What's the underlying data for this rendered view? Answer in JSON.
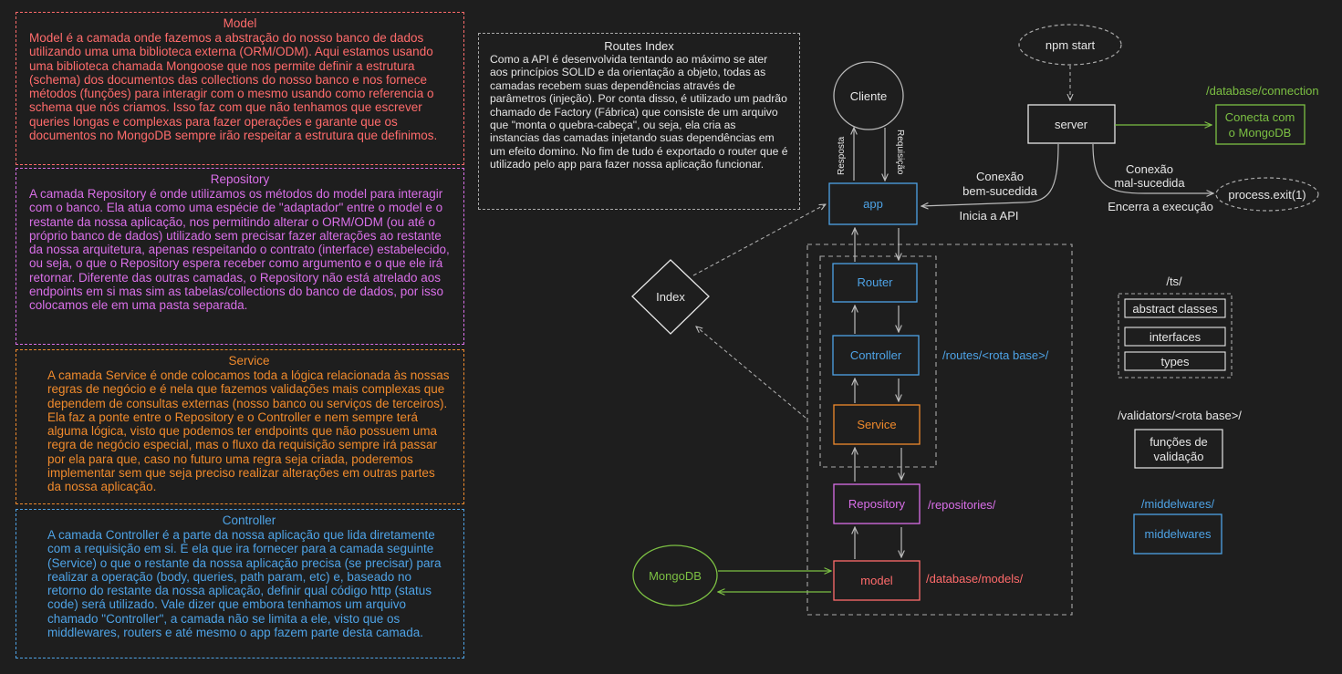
{
  "colors": {
    "background": "#1e1e1e",
    "model": "#ff6b6b",
    "repository": "#d96fe8",
    "service": "#f08a2c",
    "controller": "#4ea3e6",
    "mongodb": "#7cc043",
    "neutral": "#e6e6e6",
    "gray": "#aaaaaa"
  },
  "cards": {
    "model": {
      "title": "Model",
      "body": "Model é a camada onde fazemos a abstração do nosso banco de dados utilizando uma uma biblioteca externa (ORM/ODM). Aqui estamos usando uma biblioteca chamada Mongoose que nos permite definir a estrutura (schema) dos documentos das collections do nosso banco e nos fornece métodos (funções) para interagir com o mesmo usando como referencia o schema que nós criamos. Isso faz com que não tenhamos que escrever queries longas e complexas para fazer operações e garante que os documentos no MongoDB sempre irão respeitar a estrutura que definimos."
    },
    "repository": {
      "title": "Repository",
      "body": "A camada Repository é onde utilizamos os métodos do model para interagir com o banco. Ela atua como uma espécie de \"adaptador\" entre o model e o restante da nossa aplicação, nos permitindo alterar o ORM/ODM (ou até o próprio banco de dados) utilizado sem precisar fazer alterações ao restante da nossa arquitetura, apenas respeitando o contrato (interface) estabelecido, ou seja, o que o Repository espera receber como argumento e o que ele irá retornar. Diferente das outras camadas, o Repository não está atrelado aos endpoints em si mas sim as tabelas/collections do banco de dados, por isso colocamos ele em uma pasta separada."
    },
    "service": {
      "title": "Service",
      "body": "A camada Service é onde colocamos toda a lógica relacionada às nossas regras de negócio e é nela que fazemos validações mais complexas que dependem de consultas externas (nosso banco ou serviços de terceiros). Ela faz a ponte entre o Repository e o Controller e nem sempre terá alguma lógica, visto que podemos ter endpoints que não possuem uma regra de negócio especial, mas o fluxo da requisição sempre irá passar por ela para que, caso no futuro uma regra seja criada, poderemos implementar sem que seja preciso realizar alterações em outras partes da nossa aplicação."
    },
    "controller": {
      "title": "Controller",
      "body": "A camada Controller é a parte da nossa aplicação que lida diretamente com a requisição em si. É ela que ira fornecer para a camada seguinte (Service) o que o restante da nossa aplicação precisa (se precisar) para realizar a operação (body, queries, path param, etc) e, baseado no retorno do restante da nossa aplicação, definir qual código http (status code) será utilizado. Vale dizer que embora tenhamos um arquivo chamado \"Controller\", a camada não se limita a ele, visto que os middlewares, routers e até mesmo o app fazem parte desta camada."
    }
  },
  "routes_index": {
    "title": "Routes Index",
    "body": "Como a API é desenvolvida tentando ao máximo se ater aos princípios SOLID e da orientação a objeto, todas as camadas recebem suas dependências através de parâmetros (injeção). Por conta disso, é utilizado um padrão chamado de Factory (Fábrica) que consiste de um arquivo que \"monta o quebra-cabeça\", ou seja, ela cria as instancias das camadas injetando suas dependências em um efeito domino. No fim de tudo é exportado o router que é utilizado pelo app para fazer nossa aplicação funcionar."
  },
  "diagram": {
    "cliente": "Cliente",
    "resposta": "Resposta",
    "requisicao": "Requisição",
    "app": "app",
    "index": "Index",
    "router": "Router",
    "controller": "Controller",
    "service": "Service",
    "repository": "Repository",
    "model": "model",
    "mongodb": "MongoDB",
    "routes_path": "/routes/<rota base>/",
    "repositories_path": "/repositories/",
    "models_path": "/database/models/",
    "npm_start": "npm start",
    "server": "server",
    "db_connection_path": "/database/connection",
    "conecta_line1": "Conecta com",
    "conecta_line2": "o MongoDB",
    "conexao_ok_line1": "Conexão",
    "conexao_ok_line2": "bem-sucedida",
    "inicia_api": "Inicia a API",
    "conexao_fail_line1": "Conexão",
    "conexao_fail_line2": "mal-sucedida",
    "encerra": "Encerra a execução",
    "process_exit": "process.exit(1)",
    "ts_path": "/ts/",
    "abstract_classes": "abstract classes",
    "interfaces": "interfaces",
    "types": "types",
    "validators_path": "/validators/<rota base>/",
    "validacao_line1": "funções de",
    "validacao_line2": "validação",
    "middlewares_path": "/middelwares/",
    "middlewares": "middelwares"
  }
}
